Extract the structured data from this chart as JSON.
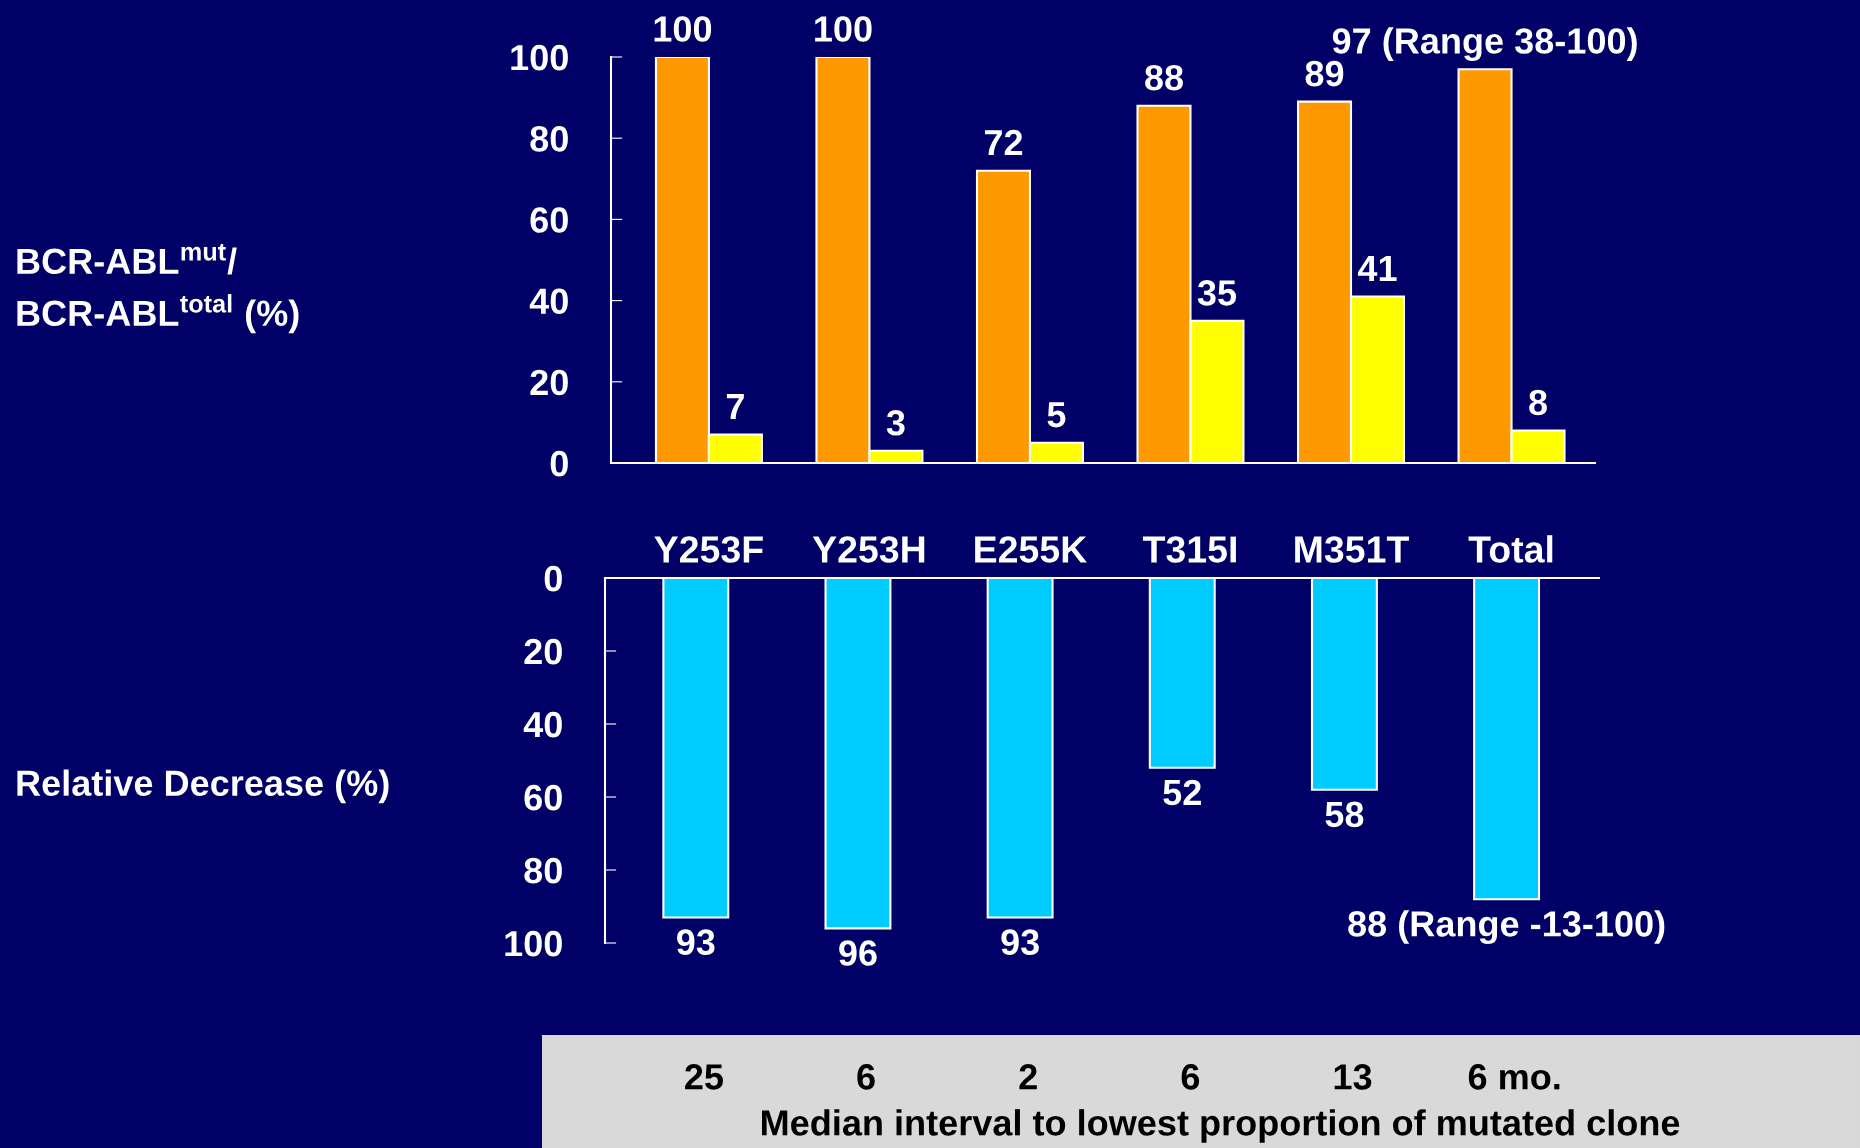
{
  "chart_data": [
    {
      "type": "bar",
      "categories": [
        "Y253F",
        "Y253H",
        "E255K",
        "T315I",
        "M351T",
        "Total"
      ],
      "ylabel": "BCR-ABL$^{mut}$/\nBCR-ABL$^{total}$ (%)",
      "ylim": [
        0,
        100
      ],
      "yticks": [
        0,
        20,
        40,
        60,
        80,
        100
      ],
      "grid": false,
      "legend": false,
      "series": [
        {
          "color": "#ff9900",
          "values": [
            100,
            100,
            72,
            88,
            89,
            97
          ],
          "value_labels": [
            "100",
            "100",
            "72",
            "88",
            "89",
            "97 (Range 38-100)"
          ]
        },
        {
          "color": "#ffff00",
          "values": [
            7,
            3,
            5,
            35,
            41,
            8
          ],
          "value_labels": [
            "7",
            "3",
            "5",
            "35",
            "41",
            "8"
          ]
        }
      ]
    },
    {
      "type": "bar",
      "categories": [
        null,
        null,
        null,
        null,
        null,
        null
      ],
      "tick_labels": "y",
      "ylabel": "Relative Decrease (%)",
      "ylim": [
        100,
        0
      ],
      "yticks": [
        0,
        20,
        40,
        60,
        80,
        100
      ],
      "grid": false,
      "legend": false,
      "series": [
        {
          "color": "#00ccff",
          "values": [
            93,
            96,
            93,
            52,
            58,
            88
          ],
          "value_labels": [
            "93",
            "96",
            "93",
            "52",
            "58",
            "88 (Range -13-100)"
          ]
        }
      ],
      "annotations": [
        "25",
        "6",
        "2",
        "6",
        "13",
        "6 mo.",
        "Median interval to lowest proportion of mutated clone"
      ]
    }
  ]
}
